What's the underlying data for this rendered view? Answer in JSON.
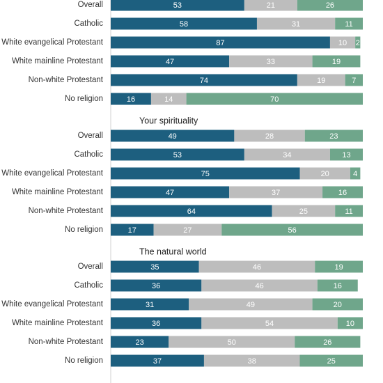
{
  "chart_data": [
    {
      "type": "stacked-bar-horizontal",
      "categories": [
        "Overall",
        "Catholic",
        "White evangelical Protestant",
        "White mainline Protestant",
        "Non-white Protestant",
        "No religion"
      ],
      "series": [
        {
          "color": "#1d5f7f",
          "values": [
            53,
            58,
            87,
            47,
            74,
            16
          ]
        },
        {
          "color": "#bdbdbd",
          "values": [
            21,
            31,
            10,
            33,
            19,
            14
          ]
        },
        {
          "color": "#6fa68b",
          "values": [
            26,
            11,
            2,
            19,
            7,
            70
          ]
        }
      ],
      "xlim": [
        0,
        100
      ]
    },
    {
      "type": "stacked-bar-horizontal",
      "title": "Your spirituality",
      "categories": [
        "Overall",
        "Catholic",
        "White evangelical Protestant",
        "White mainline Protestant",
        "Non-white Protestant",
        "No religion"
      ],
      "series": [
        {
          "color": "#1d5f7f",
          "values": [
            49,
            53,
            75,
            47,
            64,
            17
          ]
        },
        {
          "color": "#bdbdbd",
          "values": [
            28,
            34,
            20,
            37,
            25,
            27
          ]
        },
        {
          "color": "#6fa68b",
          "values": [
            23,
            13,
            4,
            16,
            11,
            56
          ]
        }
      ],
      "xlim": [
        0,
        100
      ]
    },
    {
      "type": "stacked-bar-horizontal",
      "title": "The natural world",
      "categories": [
        "Overall",
        "Catholic",
        "White evangelical Protestant",
        "White mainline Protestant",
        "Non-white Protestant",
        "No religion"
      ],
      "series": [
        {
          "color": "#1d5f7f",
          "values": [
            35,
            36,
            31,
            36,
            23,
            37
          ]
        },
        {
          "color": "#bdbdbd",
          "values": [
            46,
            46,
            49,
            54,
            50,
            38
          ]
        },
        {
          "color": "#6fa68b",
          "values": [
            19,
            16,
            20,
            10,
            26,
            25
          ]
        }
      ],
      "xlim": [
        0,
        100
      ]
    }
  ]
}
